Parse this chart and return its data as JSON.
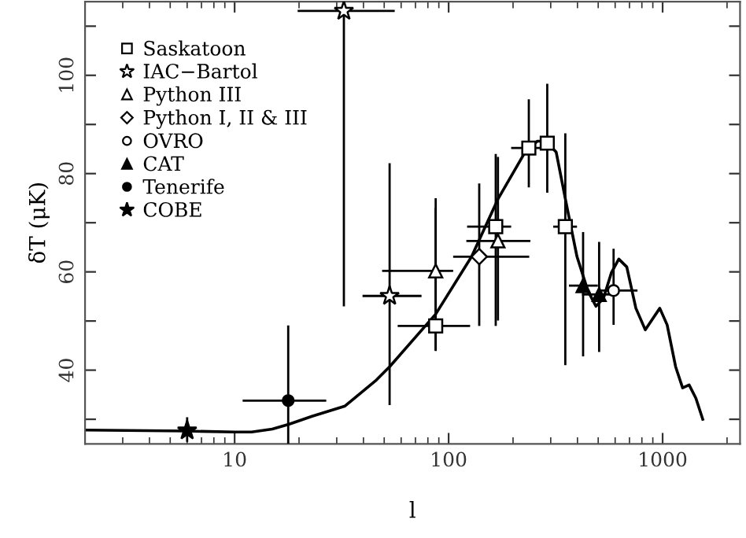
{
  "chart_data": {
    "type": "scatter",
    "xlabel": "l",
    "ylabel": "δT (μK)",
    "log": "x",
    "xlim": [
      2,
      2300
    ],
    "ylim": [
      25,
      115
    ],
    "xticks": [
      10,
      100,
      1000
    ],
    "yticks": [
      {
        "value": 30,
        "label": null
      },
      40,
      {
        "value": 50,
        "label": null
      },
      60,
      {
        "value": 70,
        "label": null
      },
      80,
      {
        "value": 90,
        "label": null
      },
      100,
      {
        "value": 110,
        "label": null
      }
    ],
    "legend": "top left",
    "grid": false,
    "series": [
      {
        "name": "Saskatoon",
        "marker": "square",
        "color": "#ffffff",
        "x": [
          87,
          166,
          237,
          289,
          351
        ],
        "values": [
          49.0,
          69.2,
          85.2,
          86.2,
          69.2
        ],
        "errors": [
          [
            44,
            73
          ],
          [
            49,
            84
          ],
          [
            77.2,
            95.1
          ],
          [
            76.1,
            98.3
          ],
          [
            41.0,
            88.2
          ]
        ],
        "xerrors": [
          [
            57.8,
            126
          ],
          [
            122,
            196
          ],
          [
            196,
            291
          ],
          null,
          [
            308,
            398
          ]
        ]
      },
      {
        "name": "IAC−Bartol",
        "marker": "star",
        "color": "#ffffff",
        "x": [
          32.4,
          53
        ],
        "values": [
          113.1,
          55.1
        ],
        "errors": [
          [
            53,
            115
          ],
          [
            32.9,
            82.1
          ]
        ],
        "xerrors": [
          [
            19.7,
            56
          ],
          [
            39.6,
            74.7
          ]
        ]
      },
      {
        "name": "Python III",
        "marker": "triangle",
        "color": "#ffffff",
        "x": [
          87,
          170
        ],
        "values": [
          60.2,
          66.3
        ],
        "errors": [
          [
            43.9,
            75.0
          ],
          [
            50.1,
            83.4
          ]
        ],
        "xerrors": [
          [
            48.9,
            105
          ],
          [
            121,
            241
          ]
        ]
      },
      {
        "name": "Python I, II & III",
        "marker": "diamond",
        "color": "#ffffff",
        "x": [
          139
        ],
        "values": [
          63.1
        ],
        "errors": [
          [
            49.0,
            78.0
          ]
        ],
        "xerrors": [
          [
            105,
            238
          ]
        ]
      },
      {
        "name": "OVRO",
        "marker": "circle",
        "color": "#ffffff",
        "x": [
          590
        ],
        "values": [
          56.2
        ],
        "errors": [
          [
            49.2,
            64.7
          ]
        ],
        "xerrors": [
          [
            498,
            763
          ]
        ]
      },
      {
        "name": "CAT",
        "marker": "triangle",
        "color": "#000000",
        "x": [
          425,
          505
        ],
        "values": [
          57.2,
          55.4
        ],
        "errors": [
          [
            42.8,
            68.1
          ],
          [
            43.7,
            66.1
          ]
        ],
        "xerrors": [
          [
            365,
            498
          ],
          [
            420,
            600
          ]
        ]
      },
      {
        "name": "Tenerife",
        "marker": "circle",
        "color": "#000000",
        "x": [
          17.8
        ],
        "values": [
          33.8
        ],
        "errors": [
          [
            25,
            49.1
          ]
        ],
        "xerrors": [
          [
            10.9,
            26.8
          ]
        ]
      },
      {
        "name": "COBE",
        "marker": "star",
        "color": "#000000",
        "x": [
          6.0
        ],
        "values": [
          27.7
        ],
        "errors": [
          [
            25.4,
            30.4
          ]
        ]
      },
      {
        "type": "line",
        "color": "#000000",
        "marker": "none",
        "line_style": "solid",
        "x": [
          2,
          6,
          10,
          12,
          15,
          18,
          23,
          32.8,
          46,
          53,
          87,
          128,
          170,
          228,
          260,
          284,
          318,
          355,
          398,
          447,
          488,
          529,
          577,
          624,
          680,
          750,
          830,
          900,
          970,
          1050,
          1150,
          1240,
          1330,
          1430,
          1540
        ],
        "values": [
          27.8,
          27.6,
          27.4,
          27.4,
          28.0,
          29.0,
          30.6,
          32.7,
          38.0,
          40.7,
          51.4,
          63.1,
          74.8,
          84.4,
          86.6,
          86.6,
          84.4,
          73.8,
          63.1,
          56.2,
          53.0,
          54.6,
          59.9,
          62.6,
          61.0,
          52.6,
          48.2,
          50.5,
          52.6,
          49.2,
          40.7,
          36.4,
          37.0,
          34.3,
          30.0
        ]
      }
    ]
  }
}
